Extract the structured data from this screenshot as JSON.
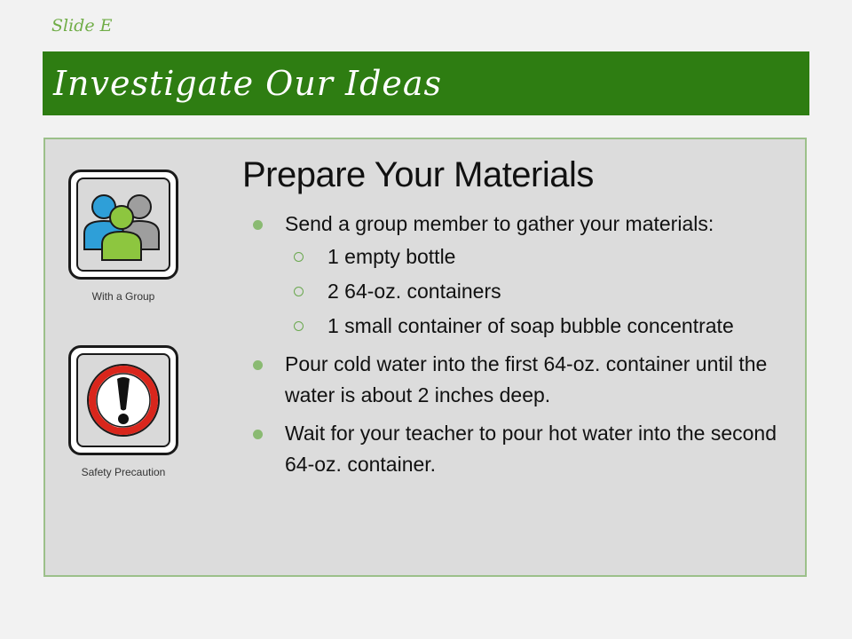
{
  "slide_label": "Slide E",
  "title": "Investigate Our Ideas",
  "icons": {
    "group": {
      "caption": "With a Group",
      "icon": "group-people-icon"
    },
    "safety": {
      "caption": "Safety Precaution",
      "icon": "exclamation-warning-icon"
    }
  },
  "heading": "Prepare Your Materials",
  "bullets": {
    "b1": "Send a group member to gather your materials:",
    "sub": [
      "1 empty bottle",
      "2 64-oz. containers",
      "1 small container of soap bubble concentrate"
    ],
    "b2": "Pour cold water into the first 64-oz. container until the water is about 2 inches deep.",
    "b3": "Wait for your teacher to pour hot water into the second 64-oz. container."
  },
  "colors": {
    "title_bar": "#2e7d12",
    "accent_green": "#70ad47",
    "content_bg": "#dcdcdc",
    "person_blue": "#2e9fd8",
    "person_green": "#8dc63f",
    "person_gray": "#9e9e9e",
    "warning_red": "#d9261c"
  }
}
